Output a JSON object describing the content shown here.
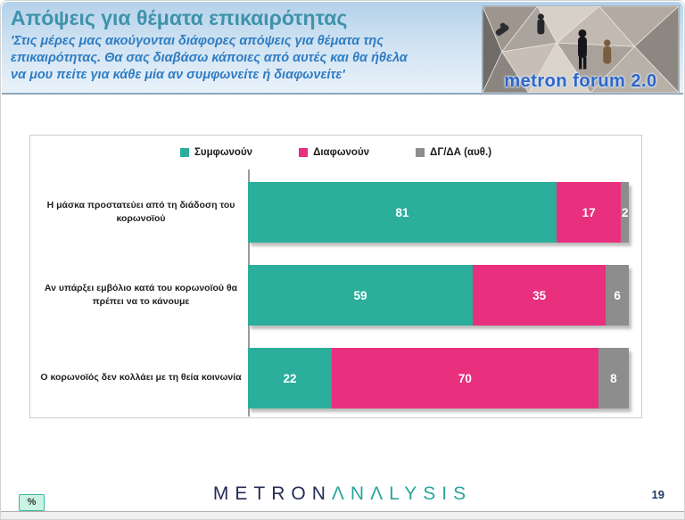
{
  "header": {
    "title": "Απόψεις για θέματα επικαιρότητας",
    "subtitle_lines": [
      "'Στις μέρες μας ακούγονται διάφορες απόψεις για θέματα της",
      "επικαιρότητας. Θα σας διαβάσω κάποιες από αυτές και θα ήθελα",
      "να μου πείτε για κάθε μία αν συμφωνείτε ή διαφωνείτε'"
    ],
    "logo_caption": "metron forum 2.0"
  },
  "chart_data": {
    "type": "bar",
    "orientation": "horizontal",
    "stacked": true,
    "unit": "%",
    "xlim": [
      0,
      100
    ],
    "legend_position": "top",
    "grid": false,
    "categories": [
      "Η μάσκα προστατεύει από τη διάδοση του κορωνοϊού",
      "Αν υπάρξει εμβόλιο κατά του κορωνοϊού θα πρέπει να το κάνουμε",
      "Ο κορωνοϊός δεν κολλάει με τη θεία κοινωνία"
    ],
    "series": [
      {
        "name": "Συμφωνούν",
        "color": "#2bae9c",
        "values": [
          81,
          59,
          22
        ]
      },
      {
        "name": "Διαφωνούν",
        "color": "#e8307e",
        "values": [
          17,
          35,
          70
        ]
      },
      {
        "name": "ΔΓ/ΔΑ (αυθ.)",
        "color": "#8d8d8d",
        "values": [
          2,
          6,
          8
        ]
      }
    ]
  },
  "footer": {
    "percent_label": "%",
    "brand_metron": "METRON",
    "brand_analysis": "ΛNΛLYSIS",
    "page_number": "19"
  }
}
